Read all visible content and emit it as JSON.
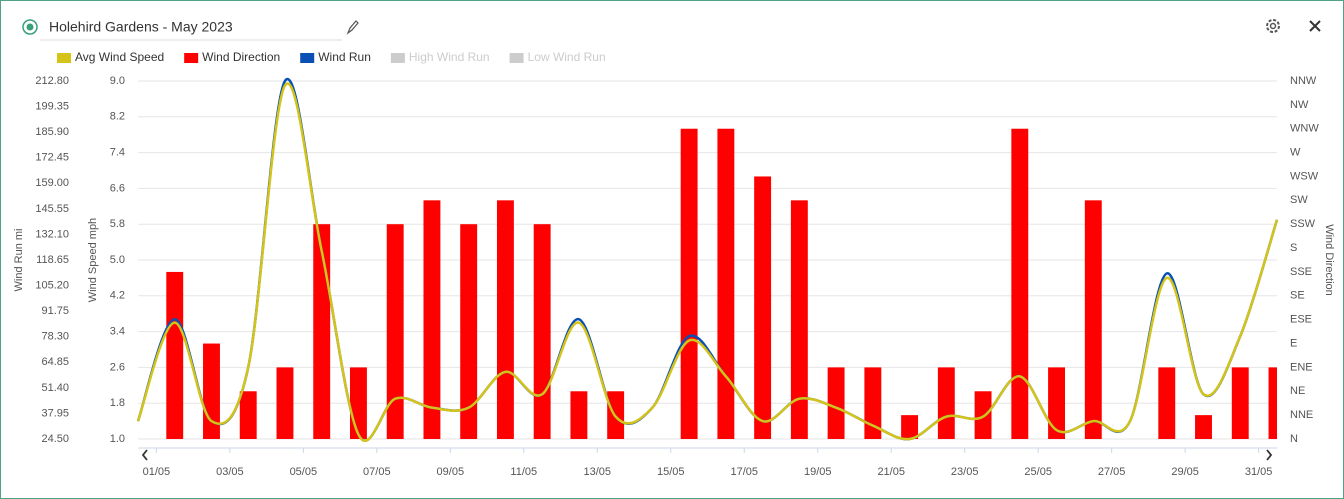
{
  "chart_data": {
    "type": "combo",
    "title": "Holehird Gardens - May 2023",
    "x": [
      0,
      1,
      2,
      3,
      4,
      5,
      6,
      7,
      8,
      9,
      10,
      11,
      12,
      13,
      14,
      15,
      16,
      17,
      18,
      19,
      20,
      21,
      22,
      23,
      24,
      25,
      26,
      27,
      28,
      29,
      30,
      31
    ],
    "xlim": [
      0,
      31
    ],
    "xticks": [
      {
        "value": 0.5,
        "label": "01/05"
      },
      {
        "value": 2.5,
        "label": "03/05"
      },
      {
        "value": 4.5,
        "label": "05/05"
      },
      {
        "value": 6.5,
        "label": "07/05"
      },
      {
        "value": 8.5,
        "label": "09/05"
      },
      {
        "value": 10.5,
        "label": "11/05"
      },
      {
        "value": 12.5,
        "label": "13/05"
      },
      {
        "value": 14.5,
        "label": "15/05"
      },
      {
        "value": 16.5,
        "label": "17/05"
      },
      {
        "value": 18.5,
        "label": "19/05"
      },
      {
        "value": 20.5,
        "label": "21/05"
      },
      {
        "value": 22.5,
        "label": "23/05"
      },
      {
        "value": 24.5,
        "label": "25/05"
      },
      {
        "value": 26.5,
        "label": "27/05"
      },
      {
        "value": 28.5,
        "label": "29/05"
      },
      {
        "value": 30.5,
        "label": "31/05"
      }
    ],
    "ylabel": "Wind Speed mph",
    "ylim": [
      1,
      9
    ],
    "yticks": [
      {
        "value": 1,
        "label": "1.0"
      },
      {
        "value": 1.8,
        "label": "1.8"
      },
      {
        "value": 2.6,
        "label": "2.6"
      },
      {
        "value": 3.4,
        "label": "3.4"
      },
      {
        "value": 4.2,
        "label": "4.2"
      },
      {
        "value": 5,
        "label": "5.0"
      },
      {
        "value": 5.8,
        "label": "5.8"
      },
      {
        "value": 6.6,
        "label": "6.6"
      },
      {
        "value": 7.4,
        "label": "7.4"
      },
      {
        "value": 8.2,
        "label": "8.2"
      },
      {
        "value": 9,
        "label": "9.0"
      }
    ],
    "y2label": "Wind Run mi",
    "y2lim": [
      24.5,
      212.8
    ],
    "y2ticks": [
      {
        "value": 24.5,
        "label": "24.50"
      },
      {
        "value": 37.95,
        "label": "37.95"
      },
      {
        "value": 51.4,
        "label": "51.40"
      },
      {
        "value": 64.85,
        "label": "64.85"
      },
      {
        "value": 78.3,
        "label": "78.30"
      },
      {
        "value": 91.75,
        "label": "91.75"
      },
      {
        "value": 105.2,
        "label": "105.20"
      },
      {
        "value": 118.65,
        "label": "118.65"
      },
      {
        "value": 132.1,
        "label": "132.10"
      },
      {
        "value": 145.55,
        "label": "145.55"
      },
      {
        "value": 159,
        "label": "159.00"
      },
      {
        "value": 172.45,
        "label": "172.45"
      },
      {
        "value": 185.9,
        "label": "185.90"
      },
      {
        "value": 199.35,
        "label": "199.35"
      },
      {
        "value": 212.8,
        "label": "212.80"
      }
    ],
    "y3label": "Wind Direction",
    "y3lim": [
      0,
      15
    ],
    "y3ticks": [
      {
        "value": 0,
        "label": "N"
      },
      {
        "value": 1,
        "label": "NNE"
      },
      {
        "value": 2,
        "label": "NE"
      },
      {
        "value": 3,
        "label": "ENE"
      },
      {
        "value": 4,
        "label": "E"
      },
      {
        "value": 5,
        "label": "ESE"
      },
      {
        "value": 6,
        "label": "SE"
      },
      {
        "value": 7,
        "label": "SSE"
      },
      {
        "value": 8,
        "label": "S"
      },
      {
        "value": 9,
        "label": "SSW"
      },
      {
        "value": 10,
        "label": "SW"
      },
      {
        "value": 11,
        "label": "WSW"
      },
      {
        "value": 12,
        "label": "W"
      },
      {
        "value": 13,
        "label": "WNW"
      },
      {
        "value": 14,
        "label": "NW"
      },
      {
        "value": 15,
        "label": "NNW"
      }
    ],
    "grid": true,
    "series": [
      {
        "name": "Avg Wind Speed",
        "type": "line",
        "axis": "y",
        "color": "#d4c41a",
        "values": [
          1.4,
          3.6,
          1.4,
          2.6,
          8.9,
          5.2,
          1.1,
          1.9,
          1.7,
          1.7,
          2.5,
          2.0,
          3.6,
          1.5,
          1.7,
          3.2,
          2.4,
          1.4,
          1.9,
          1.7,
          1.3,
          1.0,
          1.5,
          1.5,
          2.4,
          1.2,
          1.4,
          1.4,
          4.6,
          2.0,
          3.3,
          5.9
        ]
      },
      {
        "name": "Wind Direction",
        "type": "bar",
        "axis": "y3",
        "color": "#ff0000",
        "values": [
          null,
          7,
          4,
          2,
          3,
          9,
          3,
          9,
          10,
          9,
          10,
          9,
          2,
          2,
          null,
          13,
          13,
          11,
          10,
          3,
          3,
          1,
          3,
          2,
          13,
          3,
          10,
          null,
          3,
          1,
          3,
          3
        ]
      },
      {
        "name": "Wind Run",
        "type": "line",
        "axis": "y2",
        "color": "#0a50b4",
        "values": [
          33.9,
          87.5,
          33.9,
          62.2,
          212.8,
          123.4,
          26.9,
          45.7,
          41.0,
          41.0,
          59.8,
          48.0,
          87.5,
          36.3,
          41.0,
          78.6,
          57.5,
          33.9,
          45.7,
          41.0,
          31.6,
          24.5,
          36.3,
          36.3,
          57.5,
          29.2,
          33.9,
          33.9,
          111.6,
          48.0,
          78.6,
          139.8
        ]
      }
    ],
    "hidden_series": [
      {
        "name": "High Wind Run",
        "color": "#cccccc"
      },
      {
        "name": "Low Wind Run",
        "color": "#cccccc"
      }
    ]
  }
}
